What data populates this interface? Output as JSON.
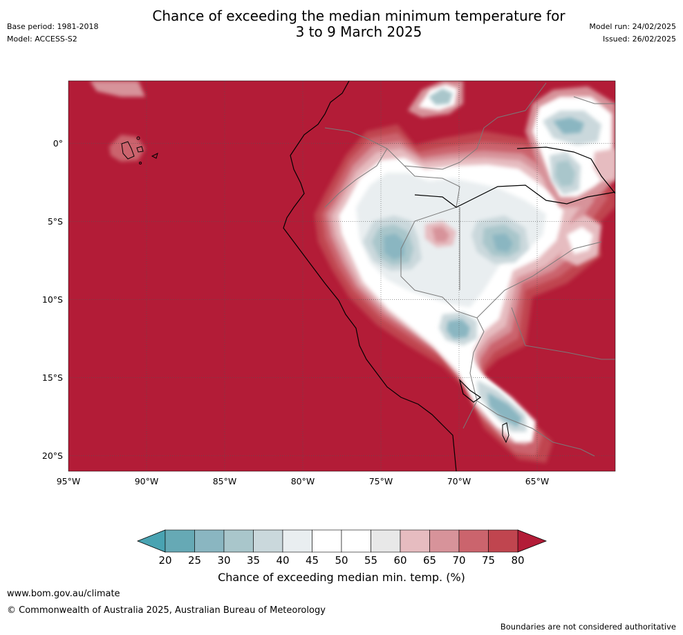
{
  "title": {
    "line1": "Chance of exceeding the median minimum temperature for",
    "line2": "3 to 9 March 2025"
  },
  "meta_left": {
    "base_period": "Base period: 1981-2018",
    "model": "Model: ACCESS-S2"
  },
  "meta_right": {
    "model_run": "Model run: 24/02/2025",
    "issued": "Issued: 26/02/2025"
  },
  "map": {
    "lon_ticks": [
      "95°W",
      "90°W",
      "85°W",
      "80°W",
      "75°W",
      "70°W",
      "65°W"
    ],
    "lat_ticks": [
      "0°",
      "5°S",
      "10°S",
      "15°S",
      "20°S"
    ],
    "lon_range": [
      -95,
      -60
    ],
    "lat_range": [
      -21,
      4
    ],
    "gridlines": true,
    "colors": {
      "above_80": "#b31c37",
      "c75_80": "#c0454f",
      "c70_75": "#cb646d",
      "c65_70": "#d7939a",
      "c60_65": "#e6bcc0",
      "c55_60": "#e8e8e8",
      "c45_55": "#ffffff",
      "c40_45": "#e9eef0",
      "c35_40": "#cad8dc",
      "c30_35": "#a9c6cb",
      "c25_30": "#8ab6c1",
      "c20_25": "#66a9b5",
      "below_20": "#49a3b2"
    }
  },
  "colorbar": {
    "ticks": [
      "20",
      "25",
      "30",
      "35",
      "40",
      "45",
      "50",
      "55",
      "60",
      "65",
      "70",
      "75",
      "80"
    ],
    "colors": [
      "#66a9b5",
      "#8ab6c1",
      "#a9c6cb",
      "#cad8dc",
      "#e9eef0",
      "#ffffff",
      "#ffffff",
      "#e8e8e8",
      "#e6bcc0",
      "#d7939a",
      "#cb646d",
      "#c0454f"
    ],
    "low_extend_color": "#49a3b2",
    "high_extend_color": "#b31c37",
    "label": "Chance of exceeding median min. temp. (%)"
  },
  "footer": {
    "site": "www.bom.gov.au/climate",
    "copyright": "© Commonwealth of Australia 2025, Australian Bureau of Meteorology",
    "disclaimer": "Boundaries are not considered authoritative"
  }
}
